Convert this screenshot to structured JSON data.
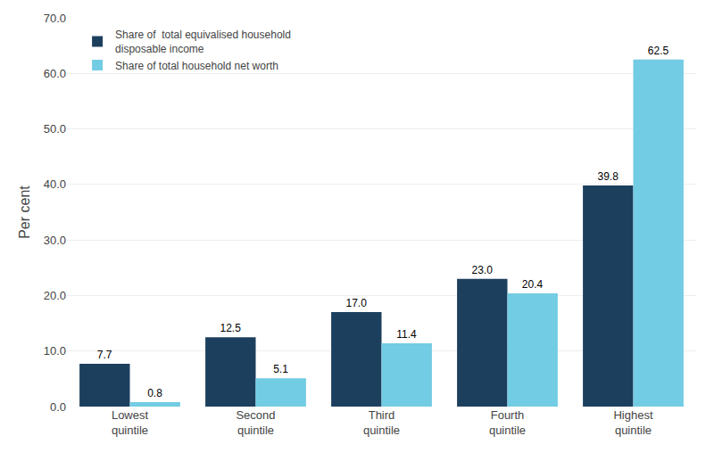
{
  "chart_data": {
    "type": "bar",
    "categories": [
      "Lowest\nquintile",
      "Second\nquintile",
      "Third\nquintile",
      "Fourth\nquintile",
      "Highest\nquintile"
    ],
    "series": [
      {
        "name": "Share of  total equivalised household\ndisposable income",
        "color": "#1c3f5e",
        "values": [
          7.7,
          12.5,
          17.0,
          23.0,
          39.8
        ],
        "value_labels": [
          "7.7",
          "12.5",
          "17.0",
          "23.0",
          "39.8"
        ]
      },
      {
        "name": "Share of total household net worth",
        "color": "#72cce3",
        "values": [
          0.8,
          5.1,
          11.4,
          20.4,
          62.5
        ]
      }
    ],
    "ylabel": "Per cent",
    "ylim": [
      0,
      70
    ],
    "yticks": [
      {
        "value": 0,
        "label": "0.0"
      },
      {
        "value": 10,
        "label": "10.0"
      },
      {
        "value": 20,
        "label": "20.0"
      },
      {
        "value": 30,
        "label": "30.0"
      },
      {
        "value": 40,
        "label": "40.0"
      },
      {
        "value": 50,
        "label": "50.0"
      },
      {
        "value": 60,
        "label": "60.0"
      },
      {
        "value": 70,
        "label": "70.0"
      }
    ],
    "grid": true,
    "legend": "upper left",
    "data_labels": true
  }
}
